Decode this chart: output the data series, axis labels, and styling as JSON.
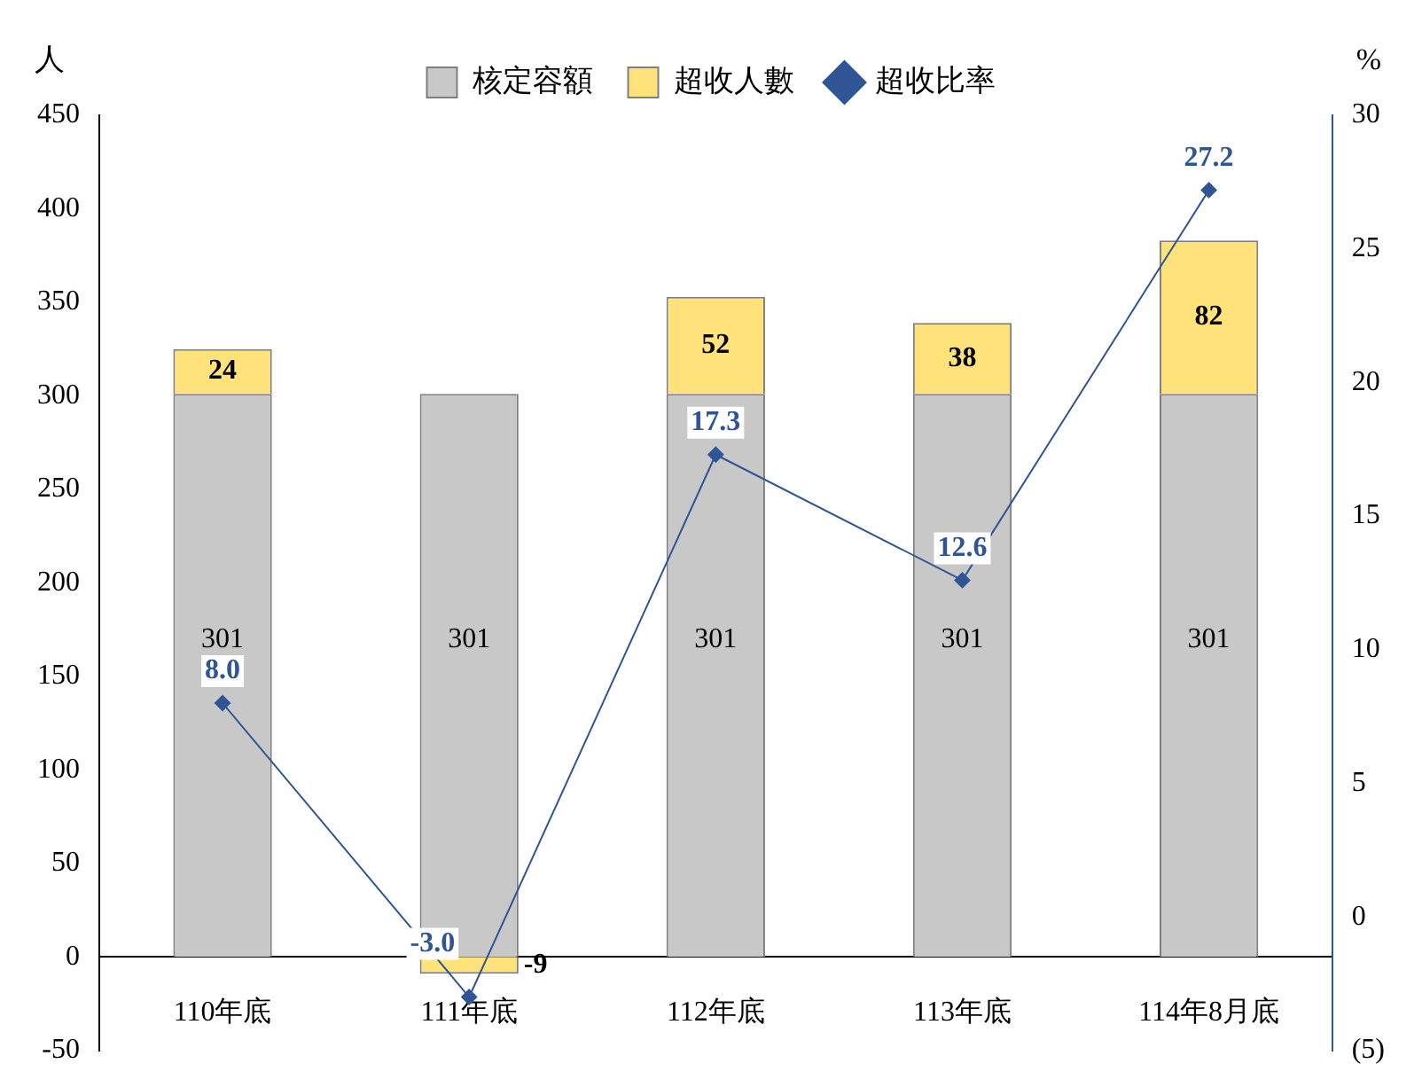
{
  "chart_data": {
    "type": "bar",
    "stacked": true,
    "ylabel": "人",
    "y2label": "%",
    "categories": [
      "110年底",
      "111年底",
      "112年底",
      "113年底",
      "114年8月底"
    ],
    "series": [
      {
        "name": "核定容額",
        "color": "#c8c8c8",
        "values": [
          301,
          301,
          301,
          301,
          301
        ]
      },
      {
        "name": "超收人數",
        "color": "#ffe27a",
        "values": [
          24,
          -9,
          52,
          38,
          82
        ]
      },
      {
        "name": "超收比率",
        "type": "line",
        "axis": "y2",
        "color": "#2f5597",
        "values": [
          8.0,
          -3.0,
          17.3,
          12.6,
          27.2
        ],
        "value_labels": [
          "8.0",
          "-3.0",
          "17.3",
          "12.6",
          "27.2"
        ]
      }
    ],
    "ylim": [
      -50,
      450
    ],
    "yticks": [
      -50,
      0,
      50,
      100,
      150,
      200,
      250,
      300,
      350,
      400,
      450
    ],
    "y2lim": [
      -5,
      30
    ],
    "y2ticks": [
      {
        "value": -5,
        "label": "(5)"
      },
      0,
      5,
      10,
      15,
      20,
      25,
      30
    ],
    "marker": "diamond",
    "line_style": "solid",
    "data_labels": true,
    "grid": false,
    "legend": "top"
  }
}
